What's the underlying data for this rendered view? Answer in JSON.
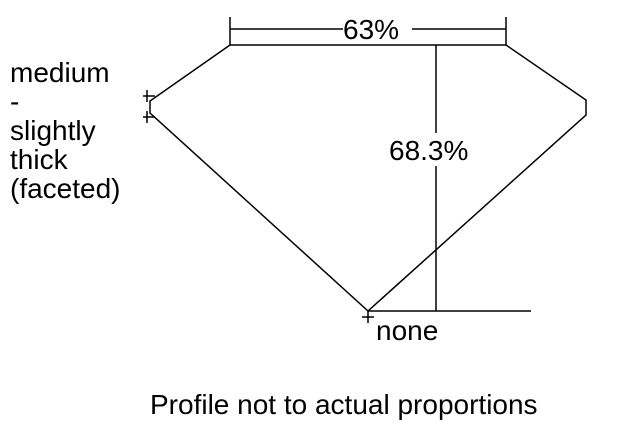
{
  "diagram": {
    "table_label": "63%",
    "depth_label": "68.3%",
    "culet_label": "none",
    "girdle_label_lines": [
      "medium",
      "-",
      "slightly",
      "thick",
      "(faceted)"
    ],
    "caption": "Profile not to actual proportions"
  }
}
